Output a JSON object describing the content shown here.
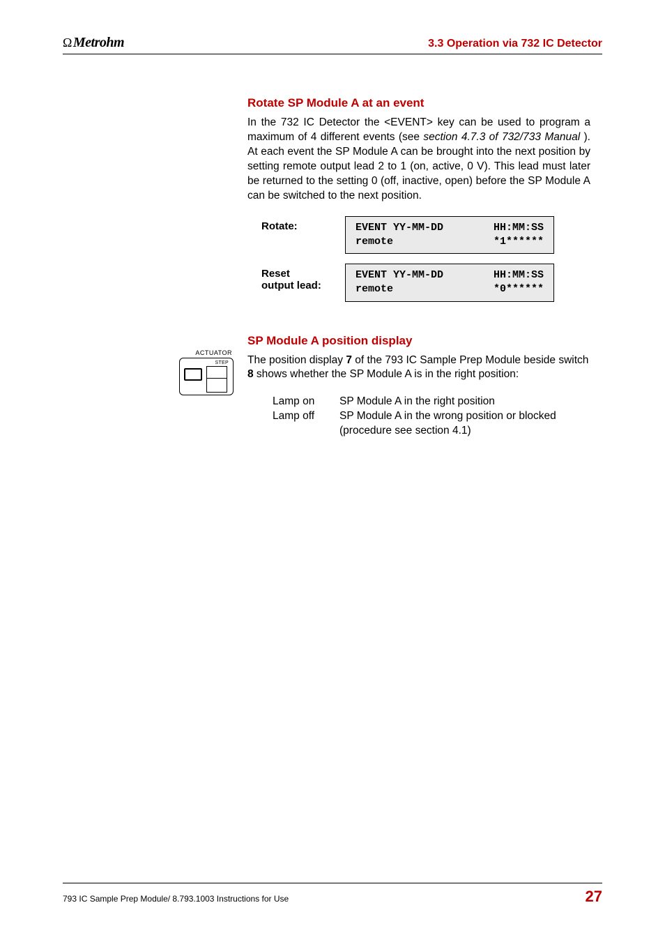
{
  "header": {
    "brand_prefix": "Ω",
    "brand_name": "Metrohm",
    "section_ref": "3.3  Operation via 732 IC Detector"
  },
  "section1": {
    "title": "Rotate SP Module A at an event",
    "paragraph_pre": "In the 732 IC Detector the <EVENT> key can be used to program a maximum of 4 different events (see ",
    "paragraph_italic": "section 4.7.3 of 732/733 Manual ",
    "paragraph_post": "). At each event the SP Module A can be brought into the next position by setting remote output lead 2 to 1 (on, active, 0 V). This lead must later be returned to the setting 0 (off, inactive, open) before the SP Module A can be switched to the next position.",
    "rows": [
      {
        "label": "Rotate:",
        "lcd_line1_left": "EVENT YY-MM-DD",
        "lcd_line1_right": "HH:MM:SS",
        "lcd_line2_left": "remote",
        "lcd_line2_right": "*1******"
      },
      {
        "label_line1": "Reset",
        "label_line2": "output lead:",
        "lcd_line1_left": "EVENT YY-MM-DD",
        "lcd_line1_right": "HH:MM:SS",
        "lcd_line2_left": "remote",
        "lcd_line2_right": "*0******"
      }
    ]
  },
  "section2": {
    "title": "SP Module A position display",
    "actuator_label": "ACTUATOR",
    "actuator_step": "STEP",
    "para_a": "The position display ",
    "para_b": "7",
    "para_c": " of the 793 IC Sample Prep Module beside switch ",
    "para_d": "8",
    "para_e": " shows whether the SP Module A is in the right position:",
    "rows": [
      {
        "col1": "Lamp on",
        "col2": "SP Module A in the right position"
      },
      {
        "col1": "Lamp off",
        "col2_a": "SP Module A in the wrong position or blocked (procedure see ",
        "col2_italic": "section 4.1",
        "col2_b": ")"
      }
    ]
  },
  "footer": {
    "left": "793 IC Sample Prep Module/  8.793.1003 Instructions for Use",
    "page": "27"
  },
  "colors": {
    "accent": "#c00000",
    "lcd_bg": "#eaeaea",
    "text": "#000000",
    "page_bg": "#ffffff"
  }
}
